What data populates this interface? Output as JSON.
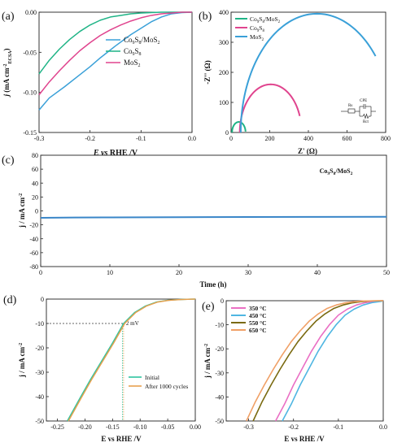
{
  "panels": {
    "a": {
      "label": "(a)"
    },
    "b": {
      "label": "(b)"
    },
    "c": {
      "label": "(c)"
    },
    "d": {
      "label": "(d)"
    },
    "e": {
      "label": "(e)"
    }
  },
  "chart_data": [
    {
      "panel": "a",
      "type": "line",
      "xlabel": "E vs RHE /V",
      "ylabel": "j (mA cm-2 ECSA)",
      "xlim": [
        -0.3,
        0.0
      ],
      "ylim": [
        -0.15,
        0.0
      ],
      "xticks": [
        "-0.3",
        "-0.2",
        "-0.1",
        "0.0"
      ],
      "yticks": [
        "0.00",
        "-0.05",
        "-0.10",
        "-0.15"
      ],
      "legend_position": "right",
      "series": [
        {
          "name": "Co9S8/MoS2",
          "color": "#3aa0d8",
          "x": [
            -0.3,
            -0.28,
            -0.25,
            -0.22,
            -0.2,
            -0.18,
            -0.15,
            -0.12,
            -0.1,
            -0.08,
            -0.06,
            -0.04,
            -0.02,
            0.0
          ],
          "y": [
            -0.122,
            -0.107,
            -0.093,
            -0.078,
            -0.068,
            -0.057,
            -0.042,
            -0.028,
            -0.02,
            -0.012,
            -0.006,
            -0.002,
            -0.0005,
            0.0
          ]
        },
        {
          "name": "Co9S8",
          "color": "#1fb486",
          "x": [
            -0.3,
            -0.28,
            -0.26,
            -0.24,
            -0.22,
            -0.2,
            -0.18,
            -0.16,
            -0.14,
            -0.12,
            -0.1,
            -0.08,
            -0.06,
            -0.04,
            -0.02,
            0.0
          ],
          "y": [
            -0.077,
            -0.06,
            -0.046,
            -0.034,
            -0.024,
            -0.016,
            -0.01,
            -0.006,
            -0.004,
            -0.002,
            -0.001,
            -0.0005,
            0.0,
            0.0,
            0.0,
            0.0
          ]
        },
        {
          "name": "MoS2",
          "color": "#e0448e",
          "x": [
            -0.3,
            -0.28,
            -0.26,
            -0.24,
            -0.22,
            -0.2,
            -0.18,
            -0.16,
            -0.14,
            -0.12,
            -0.1,
            -0.08,
            -0.06,
            -0.04,
            -0.02,
            0.0
          ],
          "y": [
            -0.103,
            -0.087,
            -0.073,
            -0.06,
            -0.048,
            -0.038,
            -0.029,
            -0.022,
            -0.016,
            -0.011,
            -0.007,
            -0.004,
            -0.002,
            -0.001,
            0.0,
            0.0
          ]
        }
      ]
    },
    {
      "panel": "b",
      "type": "line",
      "xlabel": "Z' (Ω)",
      "ylabel": "-Z'' (Ω)",
      "xlim": [
        0,
        800
      ],
      "ylim": [
        0,
        400
      ],
      "xticks": [
        "0",
        "200",
        "400",
        "600",
        "800"
      ],
      "yticks": [
        "0",
        "100",
        "200",
        "300",
        "400"
      ],
      "legend_position": "top-left",
      "inset_labels": {
        "r1": "Rs",
        "cpe": "CPE",
        "r2": "Rct"
      },
      "series": [
        {
          "name": "Co9S8/MoS2",
          "color": "#1fb486",
          "center": 40,
          "radius": 35,
          "end_deg": 5
        },
        {
          "name": "Co9S8",
          "color": "#e0448e",
          "center": 205,
          "radius": 160,
          "end_deg": 20
        },
        {
          "name": "MoS2",
          "color": "#3aa0d8",
          "center": 445,
          "radius": 395,
          "end_deg": 40
        }
      ]
    },
    {
      "panel": "c",
      "type": "line",
      "title": "Co9S8/MoS2",
      "xlabel": "Time (h)",
      "ylabel": "j / mA cm-2",
      "xlim": [
        0,
        50
      ],
      "ylim": [
        -80,
        80
      ],
      "xticks": [
        "0",
        "10",
        "20",
        "30",
        "40",
        "50"
      ],
      "yticks": [
        "80",
        "60",
        "40",
        "20",
        "0",
        "-20",
        "-40",
        "-60",
        "-80"
      ],
      "series": [
        {
          "name": "Co9S8/MoS2",
          "color": "#3a86c8",
          "x": [
            0,
            5,
            10,
            20,
            30,
            40,
            50
          ],
          "y": [
            -10,
            -9.5,
            -9.3,
            -9,
            -8.8,
            -8.6,
            -8.5
          ]
        }
      ]
    },
    {
      "panel": "d",
      "type": "line",
      "xlabel": "E vs RHE /V",
      "ylabel": "j / mA cm-2",
      "xlim": [
        -0.27,
        0.0
      ],
      "ylim": [
        -50,
        0
      ],
      "xticks": [
        "-0.25",
        "-0.20",
        "-0.15",
        "-0.10",
        "-0.05",
        "0.00"
      ],
      "yticks": [
        "0",
        "-10",
        "-20",
        "-30",
        "-40",
        "-50"
      ],
      "legend_position": "bottom-right",
      "annotation": {
        "text": "2 mV",
        "y": -10,
        "x1": -0.132,
        "x2": -0.13
      },
      "series": [
        {
          "name": "Initial",
          "color": "#2ec4a0",
          "x": [
            -0.232,
            -0.21,
            -0.19,
            -0.17,
            -0.15,
            -0.13,
            -0.11,
            -0.09,
            -0.07,
            -0.05,
            -0.03,
            -0.01,
            0.0
          ],
          "y": [
            -50,
            -41,
            -33,
            -25.5,
            -18,
            -10,
            -5.5,
            -2.8,
            -1.2,
            -0.5,
            -0.2,
            -0.05,
            0.0
          ]
        },
        {
          "name": "After 1000 cycles",
          "color": "#e8a04e",
          "x": [
            -0.23,
            -0.208,
            -0.188,
            -0.168,
            -0.148,
            -0.128,
            -0.108,
            -0.088,
            -0.068,
            -0.048,
            -0.028,
            -0.008,
            0.0
          ],
          "y": [
            -50,
            -41,
            -33,
            -25.5,
            -18,
            -10,
            -5.5,
            -2.8,
            -1.2,
            -0.5,
            -0.2,
            -0.05,
            0.0
          ]
        }
      ]
    },
    {
      "panel": "e",
      "type": "line",
      "xlabel": "E vs RHE /V",
      "ylabel": "j / mA cm-2",
      "xlim": [
        -0.35,
        0.0
      ],
      "ylim": [
        -50,
        0
      ],
      "xticks": [
        "-0.3",
        "-0.2",
        "-0.1",
        "0.0"
      ],
      "yticks": [
        "0",
        "-10",
        "-20",
        "-30",
        "-40",
        "-50"
      ],
      "legend_position": "top-left",
      "series": [
        {
          "name": "350 °C",
          "color": "#ea6fc4",
          "x": [
            -0.24,
            -0.22,
            -0.2,
            -0.18,
            -0.16,
            -0.14,
            -0.12,
            -0.1,
            -0.08,
            -0.06,
            -0.04,
            -0.02,
            0.0
          ],
          "y": [
            -50,
            -43,
            -35,
            -28,
            -21,
            -15,
            -10,
            -6,
            -3.5,
            -1.8,
            -0.8,
            -0.3,
            0.0
          ]
        },
        {
          "name": "450 °C",
          "color": "#4fb6e2",
          "x": [
            -0.225,
            -0.205,
            -0.185,
            -0.165,
            -0.145,
            -0.125,
            -0.105,
            -0.085,
            -0.065,
            -0.045,
            -0.025,
            -0.005,
            0.0
          ],
          "y": [
            -50,
            -43,
            -35,
            -28,
            -21,
            -15,
            -10,
            -6,
            -3.5,
            -1.8,
            -0.8,
            -0.3,
            0.0
          ]
        },
        {
          "name": "550 °C",
          "color": "#7a6a10",
          "x": [
            -0.29,
            -0.27,
            -0.25,
            -0.23,
            -0.21,
            -0.19,
            -0.17,
            -0.15,
            -0.13,
            -0.11,
            -0.09,
            -0.07,
            -0.05,
            -0.03,
            0.0
          ],
          "y": [
            -50,
            -42,
            -35,
            -28.5,
            -22.5,
            -17,
            -12.5,
            -8.5,
            -5.5,
            -3.2,
            -1.8,
            -0.9,
            -0.4,
            -0.1,
            0.0
          ]
        },
        {
          "name": "650 °C",
          "color": "#f0a066",
          "x": [
            -0.305,
            -0.285,
            -0.265,
            -0.245,
            -0.225,
            -0.205,
            -0.185,
            -0.165,
            -0.145,
            -0.125,
            -0.105,
            -0.085,
            -0.065,
            -0.045,
            0.0
          ],
          "y": [
            -50,
            -42,
            -35,
            -28.5,
            -22.5,
            -17,
            -12.5,
            -8.5,
            -5.5,
            -3.2,
            -1.8,
            -0.9,
            -0.4,
            -0.1,
            0.0
          ]
        }
      ]
    }
  ]
}
